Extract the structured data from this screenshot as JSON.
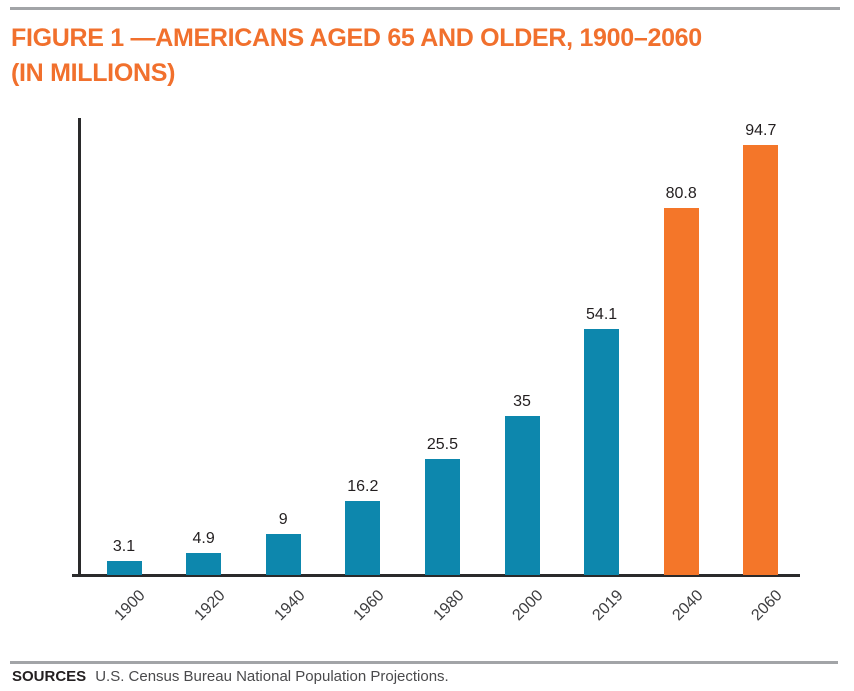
{
  "page": {
    "title_line1": "FIGURE 1 —AMERICANS AGED 65 AND OLDER, 1900–2060",
    "title_line2": "(IN MILLIONS)",
    "sources_label": "SOURCES",
    "sources_text": "U.S. Census Bureau National Population Projections."
  },
  "colors": {
    "title_orange": "#f1702d",
    "bar_teal": "#0d87ad",
    "bar_orange": "#f47629",
    "axis_dark": "#2a2a2b",
    "rule_gray": "#a2a4a7",
    "value_label_dark": "#231f20",
    "tick_label_gray": "#3e3e40"
  },
  "chart_data": {
    "type": "bar",
    "title": "FIGURE 1 — AMERICANS AGED 65 AND OLDER, 1900–2060 (IN MILLIONS)",
    "categories": [
      "1900",
      "1920",
      "1940",
      "1960",
      "1980",
      "2000",
      "2019",
      "2040",
      "2060"
    ],
    "values": [
      3.1,
      4.9,
      9,
      16.2,
      25.5,
      35,
      54.1,
      80.8,
      94.7
    ],
    "value_labels": [
      "3.1",
      "4.9",
      "9",
      "16.2",
      "25.5",
      "35",
      "54.1",
      "80.8",
      "94.7"
    ],
    "bar_color_keys": [
      "bar_teal",
      "bar_teal",
      "bar_teal",
      "bar_teal",
      "bar_teal",
      "bar_teal",
      "bar_teal",
      "bar_orange",
      "bar_orange"
    ],
    "xlabel": "",
    "ylabel": "",
    "ylim": [
      0,
      100
    ],
    "grid": false,
    "legend": "none",
    "value_labels_shown": true,
    "tick_label_rotation_deg": 45
  }
}
